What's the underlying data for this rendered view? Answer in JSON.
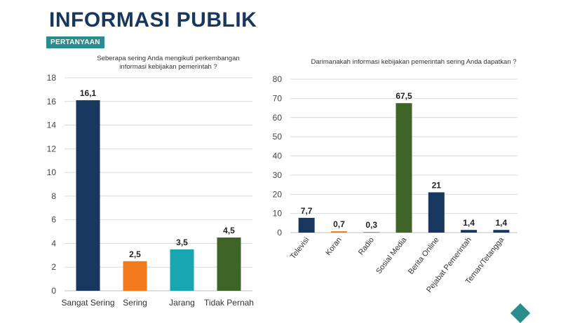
{
  "page": {
    "title": "INFORMASI PUBLIK",
    "section_label": "PERTANYAAN"
  },
  "chart_data": [
    {
      "type": "bar",
      "title": "Seberapa sering Anda mengikuti perkembangan informasi kebijakan pemerintah ?",
      "title_lines": [
        "Seberapa sering Anda mengikuti perkembangan",
        "informasi kebijakan pemerintah ?"
      ],
      "categories": [
        "Sangat Sering",
        "Sering",
        "Jarang",
        "Tidak Pernah"
      ],
      "values": [
        16.1,
        2.5,
        3.5,
        4.5
      ],
      "value_labels": [
        "16,1",
        "2,5",
        "3,5",
        "4,5"
      ],
      "colors": [
        "#17375e",
        "#f07a1c",
        "#1aa6b0",
        "#3f6428"
      ],
      "ylim": [
        0,
        18
      ],
      "yticks": [
        0,
        2,
        4,
        6,
        8,
        10,
        12,
        14,
        16,
        18
      ],
      "grid": true,
      "xlabel": "",
      "ylabel": ""
    },
    {
      "type": "bar",
      "title": "Darimanakah informasi kebijakan pemerintah sering Anda dapatkan ?",
      "categories": [
        "Televisi",
        "Koran",
        "Radio",
        "Sosial Media",
        "Berita Online",
        "Pejabat Pemerintah",
        "Teman/Tetangga"
      ],
      "values": [
        7.7,
        0.7,
        0.3,
        67.5,
        21,
        1.4,
        1.4
      ],
      "value_labels": [
        "7,7",
        "0,7",
        "0,3",
        "67,5",
        "21",
        "1,4",
        "1,4"
      ],
      "colors": [
        "#17375e",
        "#f07a1c",
        "#1aa6b0",
        "#3f6428",
        "#17375e",
        "#17375e",
        "#17375e"
      ],
      "ylim": [
        0,
        80
      ],
      "yticks": [
        0,
        10,
        20,
        30,
        40,
        50,
        60,
        70,
        80
      ],
      "grid": true,
      "xlabel": "",
      "ylabel": ""
    }
  ]
}
